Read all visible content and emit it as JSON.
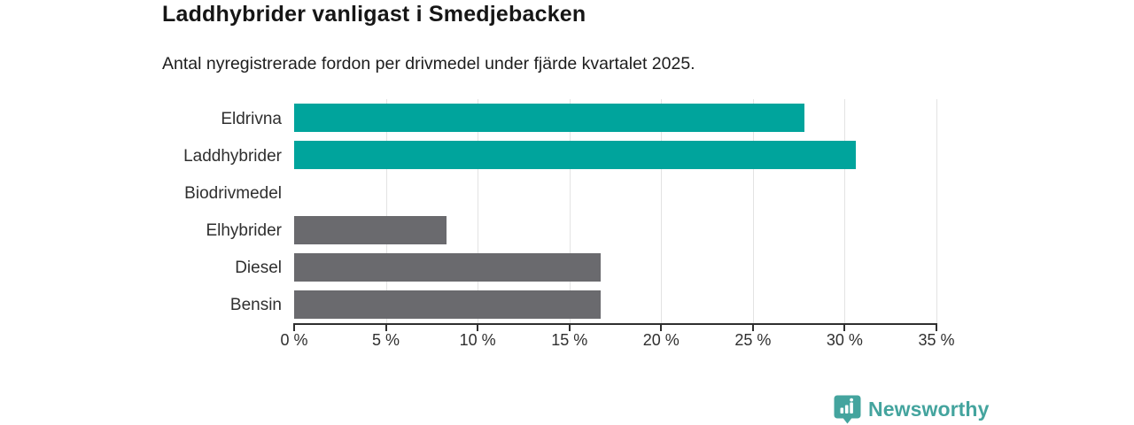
{
  "header": {
    "title": "Laddhybrider vanligast i Smedjebacken",
    "subtitle": "Antal nyregistrerade fordon per drivmedel under fjärde kvartalet 2025."
  },
  "chart_data": {
    "type": "bar",
    "orientation": "horizontal",
    "title": "Laddhybrider vanligast i Smedjebacken",
    "subtitle": "Antal nyregistrerade fordon per drivmedel under fjärde kvartalet 2025.",
    "categories": [
      "Eldrivna",
      "Laddhybrider",
      "Biodrivmedel",
      "Elhybrider",
      "Diesel",
      "Bensin"
    ],
    "values": [
      27.8,
      30.6,
      0,
      8.3,
      16.7,
      16.7
    ],
    "bar_colors": [
      "#00a49c",
      "#00a49c",
      "#6a6a6e",
      "#6a6a6e",
      "#6a6a6e",
      "#6a6a6e"
    ],
    "xlabel": "",
    "ylabel": "",
    "xlim": [
      0,
      35
    ],
    "x_ticks": [
      0,
      5,
      10,
      15,
      20,
      25,
      30,
      35
    ],
    "x_tick_labels": [
      "0 %",
      "5 %",
      "10 %",
      "15 %",
      "20 %",
      "25 %",
      "30 %",
      "35 %"
    ],
    "grid": "vertical",
    "legend": "none",
    "unit": "%"
  },
  "footer": {
    "brand": "Newsworthy",
    "logo_icon": "newsworthy-bar-chart-pin-icon"
  },
  "colors": {
    "accent_teal": "#00a49c",
    "neutral_gray": "#6a6a6e",
    "logo_teal": "#44a49e",
    "grid": "#e3e3e3",
    "axis": "#2f2f2f",
    "text": "#161616"
  }
}
